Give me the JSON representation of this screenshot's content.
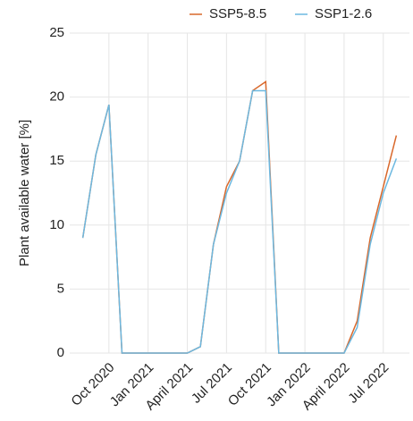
{
  "chart_data": {
    "type": "line",
    "y_label": "Plant available water [%]",
    "x": [
      "2020-08",
      "2020-09",
      "2020-10",
      "2020-11",
      "2020-12",
      "2021-01",
      "2021-02",
      "2021-03",
      "2021-04",
      "2021-05",
      "2021-06",
      "2021-07",
      "2021-08",
      "2021-09",
      "2021-10",
      "2021-11",
      "2021-12",
      "2022-01",
      "2022-02",
      "2022-03",
      "2022-04",
      "2022-05",
      "2022-06",
      "2022-07",
      "2022-08"
    ],
    "series": [
      {
        "name": "SSP5-8.5",
        "color": "#d9682b",
        "values": [
          9,
          15.5,
          19.4,
          0,
          0,
          0,
          0,
          0,
          0,
          0.5,
          8.5,
          13,
          15,
          20.5,
          21.2,
          0,
          0,
          0,
          0,
          0,
          0,
          2.5,
          9,
          13,
          17
        ]
      },
      {
        "name": "SSP1-2.6",
        "color": "#6cb8e0",
        "values": [
          9,
          15.5,
          19.4,
          0,
          0,
          0,
          0,
          0,
          0,
          0.5,
          8.5,
          12.5,
          15,
          20.5,
          20.5,
          0,
          0,
          0,
          0,
          0,
          0,
          2,
          8.5,
          12.5,
          15.2
        ]
      }
    ],
    "xlim": [
      "2020-07",
      "2022-09"
    ],
    "xticks": [
      {
        "value": "2020-10",
        "label": "Oct 2020"
      },
      {
        "value": "2021-01",
        "label": "Jan 2021"
      },
      {
        "value": "2021-04",
        "label": "April 2021"
      },
      {
        "value": "2021-07",
        "label": "Jul 2021"
      },
      {
        "value": "2021-10",
        "label": "Oct 2021"
      },
      {
        "value": "2022-01",
        "label": "Jan 2022"
      },
      {
        "value": "2022-04",
        "label": "April 2022"
      },
      {
        "value": "2022-07",
        "label": "Jul 2022"
      }
    ],
    "ylim": [
      0,
      25
    ],
    "yticks": [
      0,
      5,
      10,
      15,
      20,
      25
    ],
    "grid": true,
    "legend": "top-right"
  }
}
